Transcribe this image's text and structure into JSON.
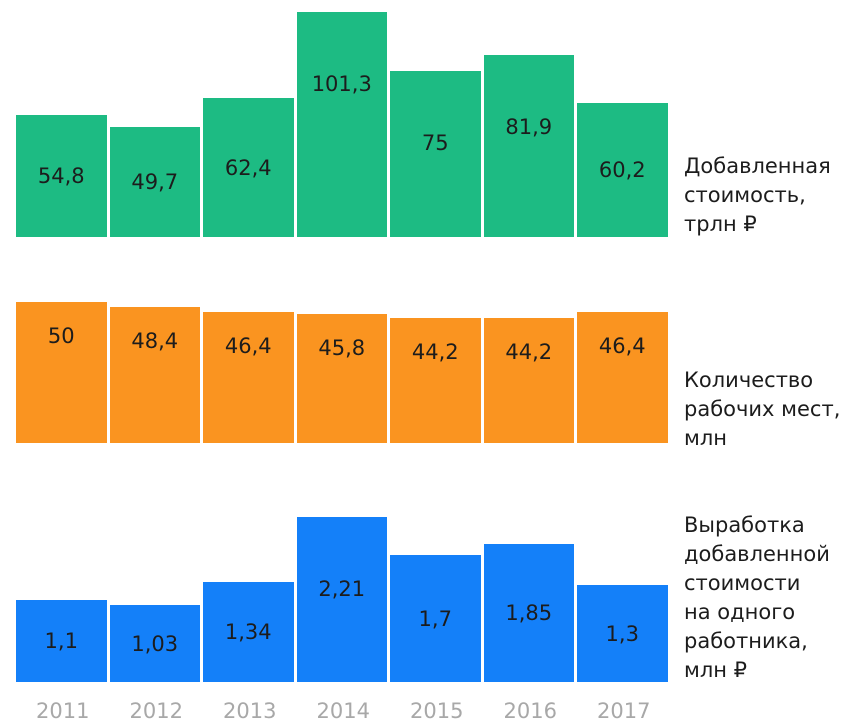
{
  "chart_data": [
    {
      "type": "bar",
      "categories": [
        "2011",
        "2012",
        "2013",
        "2014",
        "2015",
        "2016",
        "2017"
      ],
      "values": [
        54.8,
        49.7,
        62.4,
        101.3,
        75,
        81.9,
        60.2
      ],
      "value_labels": [
        "54,8",
        "49,7",
        "62,4",
        "101,3",
        "75",
        "81,9",
        "60,2"
      ],
      "label_lines": [
        "Добавленная",
        "стоимость,",
        "трлн ₽"
      ],
      "color": "#1dbb83"
    },
    {
      "type": "bar",
      "categories": [
        "2011",
        "2012",
        "2013",
        "2014",
        "2015",
        "2016",
        "2017"
      ],
      "values": [
        50,
        48.4,
        46.4,
        45.8,
        44.2,
        44.2,
        46.4
      ],
      "value_labels": [
        "50",
        "48,4",
        "46,4",
        "45,8",
        "44,2",
        "44,2",
        "46,4"
      ],
      "label_lines": [
        "Количество",
        "рабочих мест,",
        "млн"
      ],
      "color": "#fa9420"
    },
    {
      "type": "bar",
      "categories": [
        "2011",
        "2012",
        "2013",
        "2014",
        "2015",
        "2016",
        "2017"
      ],
      "values": [
        1.1,
        1.03,
        1.34,
        2.21,
        1.7,
        1.85,
        1.3
      ],
      "value_labels": [
        "1,1",
        "1,03",
        "1,34",
        "2,21",
        "1,7",
        "1,85",
        "1,3"
      ],
      "label_lines": [
        "Выработка",
        "добавленной",
        "стоимости",
        "на одного",
        "работника,",
        "млн ₽"
      ],
      "color": "#1480f9"
    }
  ],
  "x_axis": {
    "labels": [
      "2011",
      "2012",
      "2013",
      "2014",
      "2015",
      "2016",
      "2017"
    ]
  }
}
